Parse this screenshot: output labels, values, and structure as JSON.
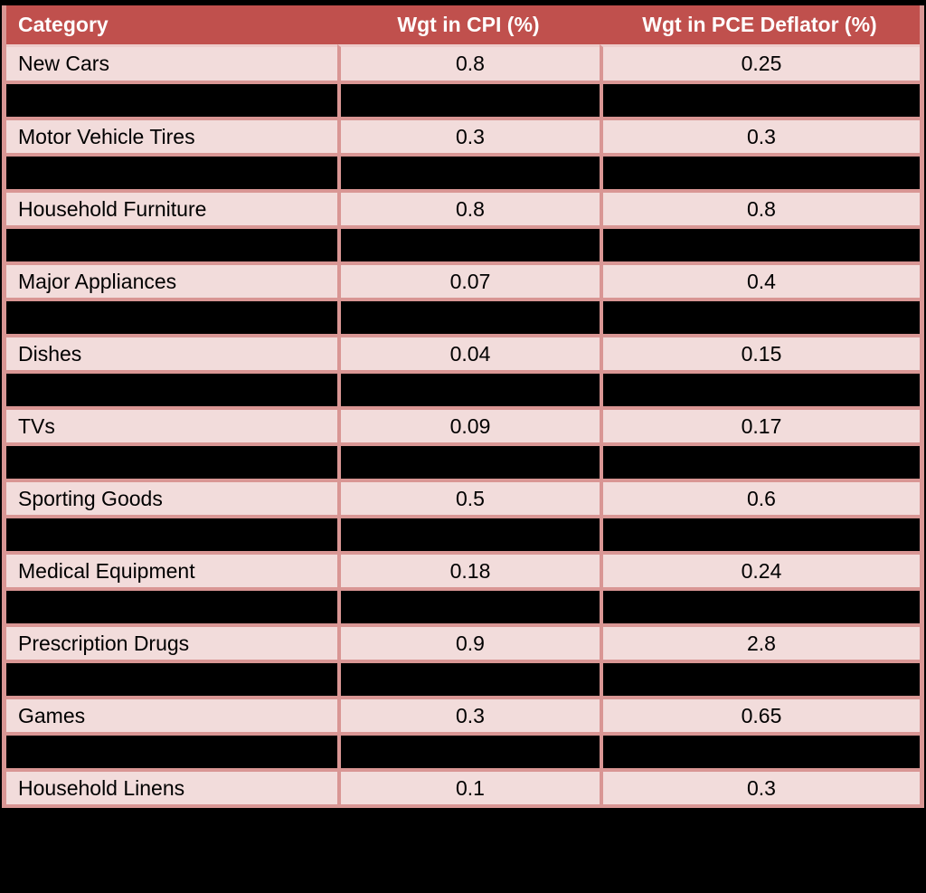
{
  "table": {
    "headers": [
      "Category",
      "Wgt in CPI (%)",
      "Wgt in PCE Deflator (%)"
    ],
    "rows": [
      {
        "redacted": false,
        "category": "New Cars",
        "cpi": "0.8",
        "pce": "0.25"
      },
      {
        "redacted": true,
        "category": "",
        "cpi": "",
        "pce": ""
      },
      {
        "redacted": false,
        "category": "Motor Vehicle Tires",
        "cpi": "0.3",
        "pce": "0.3"
      },
      {
        "redacted": true,
        "category": "",
        "cpi": "",
        "pce": ""
      },
      {
        "redacted": false,
        "category": "Household Furniture",
        "cpi": "0.8",
        "pce": "0.8"
      },
      {
        "redacted": true,
        "category": "",
        "cpi": "",
        "pce": ""
      },
      {
        "redacted": false,
        "category": "Major Appliances",
        "cpi": "0.07",
        "pce": "0.4"
      },
      {
        "redacted": true,
        "category": "",
        "cpi": "",
        "pce": ""
      },
      {
        "redacted": false,
        "category": "Dishes",
        "cpi": "0.04",
        "pce": "0.15"
      },
      {
        "redacted": true,
        "category": "",
        "cpi": "",
        "pce": ""
      },
      {
        "redacted": false,
        "category": "TVs",
        "cpi": "0.09",
        "pce": "0.17"
      },
      {
        "redacted": true,
        "category": "",
        "cpi": "",
        "pce": ""
      },
      {
        "redacted": false,
        "category": "Sporting Goods",
        "cpi": "0.5",
        "pce": "0.6"
      },
      {
        "redacted": true,
        "category": "",
        "cpi": "",
        "pce": ""
      },
      {
        "redacted": false,
        "category": "Medical Equipment",
        "cpi": "0.18",
        "pce": "0.24"
      },
      {
        "redacted": true,
        "category": "",
        "cpi": "",
        "pce": ""
      },
      {
        "redacted": false,
        "category": "Prescription Drugs",
        "cpi": "0.9",
        "pce": "2.8"
      },
      {
        "redacted": true,
        "category": "",
        "cpi": "",
        "pce": ""
      },
      {
        "redacted": false,
        "category": "Games",
        "cpi": "0.3",
        "pce": "0.65"
      },
      {
        "redacted": true,
        "category": "",
        "cpi": "",
        "pce": ""
      },
      {
        "redacted": false,
        "category": "Household Linens",
        "cpi": "0.1",
        "pce": "0.3"
      }
    ]
  },
  "colors": {
    "header_bg": "#C0504D",
    "header_text": "#FFFFFF",
    "row_bg": "#F2DCDB",
    "redacted_bg": "#000000",
    "gridline": "#D99694",
    "header_underline": "#ECCCCB",
    "outer_frame": "#000000",
    "body_text": "#000000"
  },
  "chart_data": {
    "type": "table",
    "title": "",
    "columns": [
      "Category",
      "Wgt in CPI (%)",
      "Wgt in PCE Deflator (%)"
    ],
    "rows": [
      [
        "New Cars",
        0.8,
        0.25
      ],
      [
        "Motor Vehicle Tires",
        0.3,
        0.3
      ],
      [
        "Household Furniture",
        0.8,
        0.8
      ],
      [
        "Major Appliances",
        0.07,
        0.4
      ],
      [
        "Dishes",
        0.04,
        0.15
      ],
      [
        "TVs",
        0.09,
        0.17
      ],
      [
        "Sporting Goods",
        0.5,
        0.6
      ],
      [
        "Medical Equipment",
        0.18,
        0.24
      ],
      [
        "Prescription Drugs",
        0.9,
        2.8
      ],
      [
        "Games",
        0.3,
        0.65
      ],
      [
        "Household Linens",
        0.1,
        0.3
      ]
    ],
    "layout_hints": "Header row dark red with white bold text; data rows light pink with black text; every other data row fully blacked out (redacted); pink gridlines remain visible across redacted rows; table enclosed in black outer frame"
  }
}
